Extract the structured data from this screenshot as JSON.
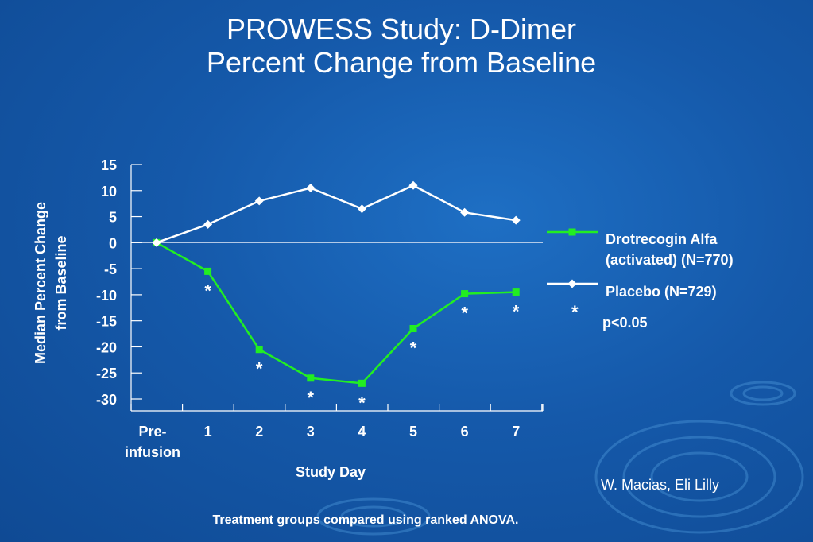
{
  "title_line1": "PROWESS Study: D-Dimer",
  "title_line2": "Percent Change from Baseline",
  "credit": "W. Macias, Eli Lilly",
  "footnote": "Treatment groups compared using ranked ANOVA.",
  "colors": {
    "drotrecogin": "#22ee22",
    "placebo": "#ffffff",
    "background": "#1559aa"
  },
  "legend": {
    "drotrecogin_line1": "Drotrecogin Alfa",
    "drotrecogin_line2": "(activated) (N=770)",
    "placebo": "Placebo (N=729)",
    "sig_symbol": "*",
    "sig_text": "p<0.05"
  },
  "chart_data": {
    "type": "line",
    "title": "PROWESS Study: D-Dimer Percent Change from Baseline",
    "xlabel": "Study Day",
    "ylabel_line1": "Median Percent Change",
    "ylabel_line2": "from Baseline",
    "categories": [
      "Pre-infusion",
      "1",
      "2",
      "3",
      "4",
      "5",
      "6",
      "7"
    ],
    "category_labels": [
      [
        "Pre-",
        "infusion"
      ],
      [
        "1"
      ],
      [
        "2"
      ],
      [
        "3"
      ],
      [
        "4"
      ],
      [
        "5"
      ],
      [
        "6"
      ],
      [
        "7"
      ]
    ],
    "ylim": [
      -30,
      15
    ],
    "yticks": [
      15,
      10,
      5,
      0,
      -5,
      -10,
      -15,
      -20,
      -25,
      -30
    ],
    "series": [
      {
        "name": "Drotrecogin Alfa (activated) (N=770)",
        "marker": "square",
        "values": [
          0,
          -5.5,
          -20.5,
          -26,
          -27,
          -16.5,
          -9.8,
          -9.5
        ],
        "significant": [
          false,
          true,
          true,
          true,
          true,
          true,
          true,
          true
        ]
      },
      {
        "name": "Placebo (N=729)",
        "marker": "diamond",
        "values": [
          0,
          3.5,
          8,
          10.5,
          6.5,
          11,
          5.8,
          4.3
        ]
      }
    ],
    "significance_marker": "*",
    "grid": false,
    "legend_position": "right"
  }
}
